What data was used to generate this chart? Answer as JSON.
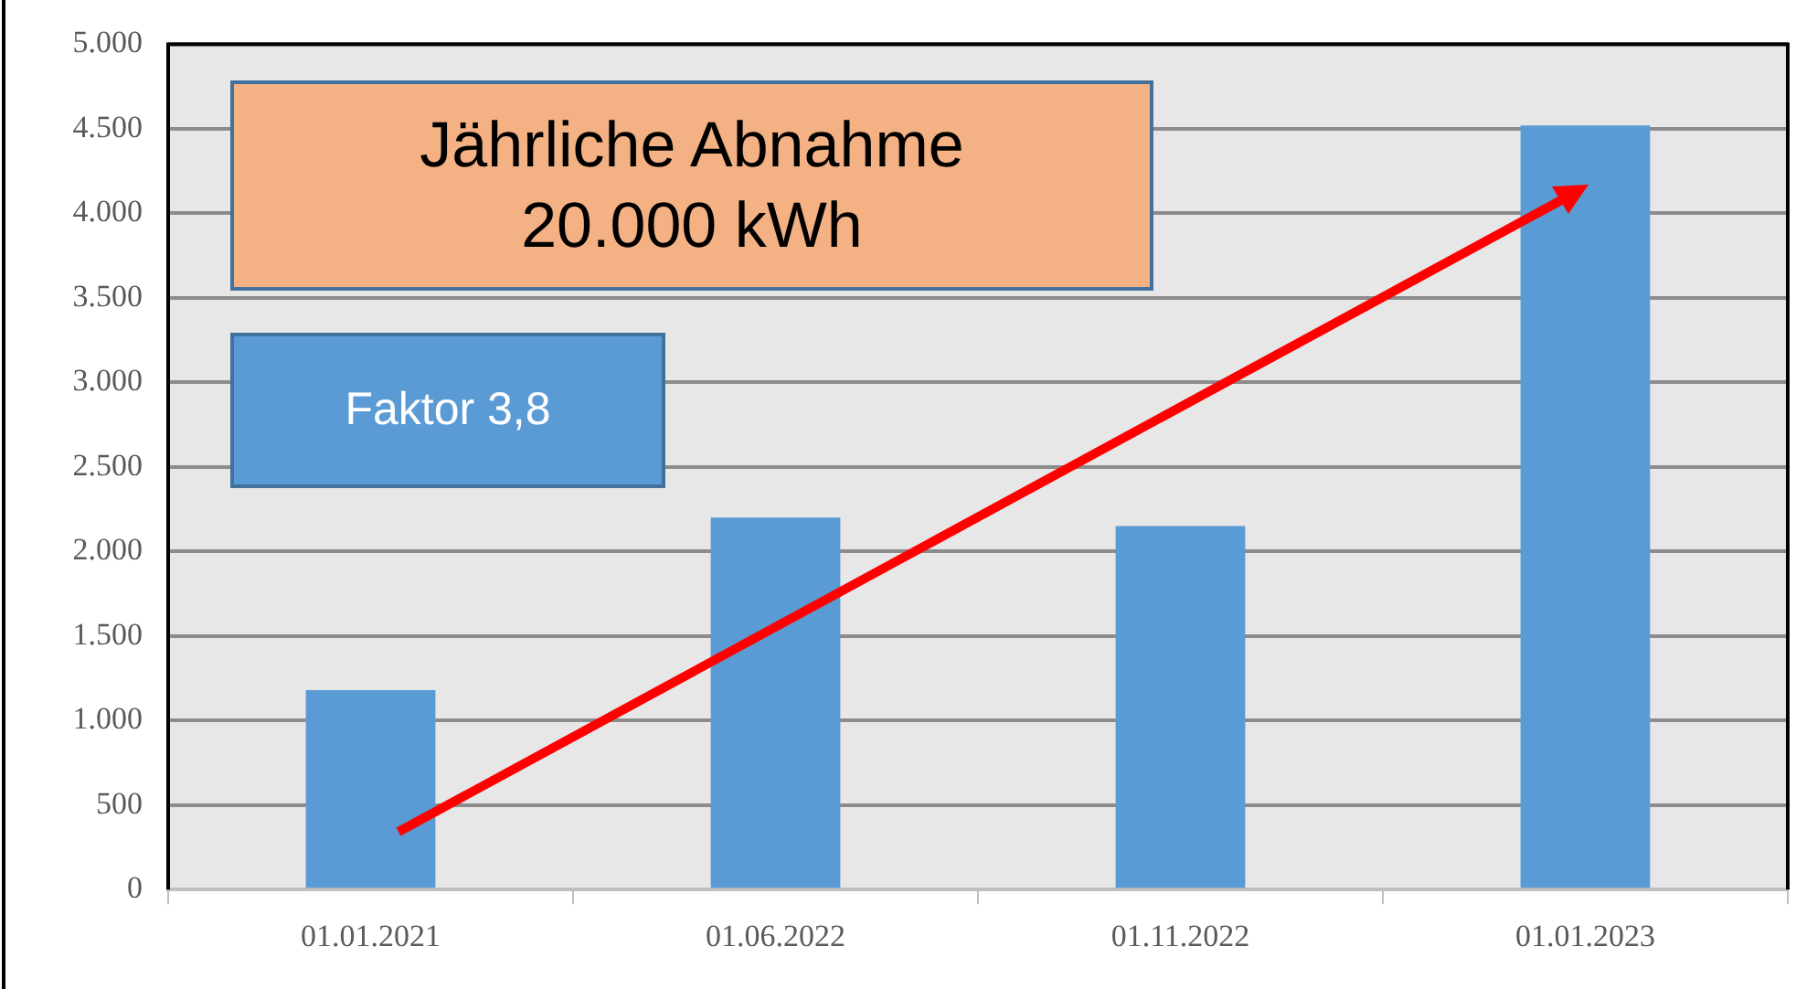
{
  "chart_data": {
    "type": "bar",
    "categories": [
      "01.01.2021",
      "01.06.2022",
      "01.11.2022",
      "01.01.2023"
    ],
    "values": [
      1180,
      2200,
      2150,
      4520
    ],
    "color": "#5b9bd5",
    "ylim": [
      0,
      5000
    ],
    "yticks": [
      0,
      500,
      {
        "value": 1000,
        "label": "1.000"
      },
      {
        "value": 1500,
        "label": "1.500"
      },
      {
        "value": 2000,
        "label": "2.000"
      },
      {
        "value": 2500,
        "label": "2.500"
      },
      {
        "value": 3000,
        "label": "3.000"
      },
      {
        "value": 3500,
        "label": "3.500"
      },
      {
        "value": 4000,
        "label": "4.000"
      },
      {
        "value": 4500,
        "label": "4.500"
      },
      {
        "value": 5000,
        "label": "5.000"
      }
    ],
    "grid": "y",
    "legend": false,
    "annotations": [
      "Jährliche Abnahme\n20.000 kWh",
      "Faktor 3,8"
    ]
  }
}
